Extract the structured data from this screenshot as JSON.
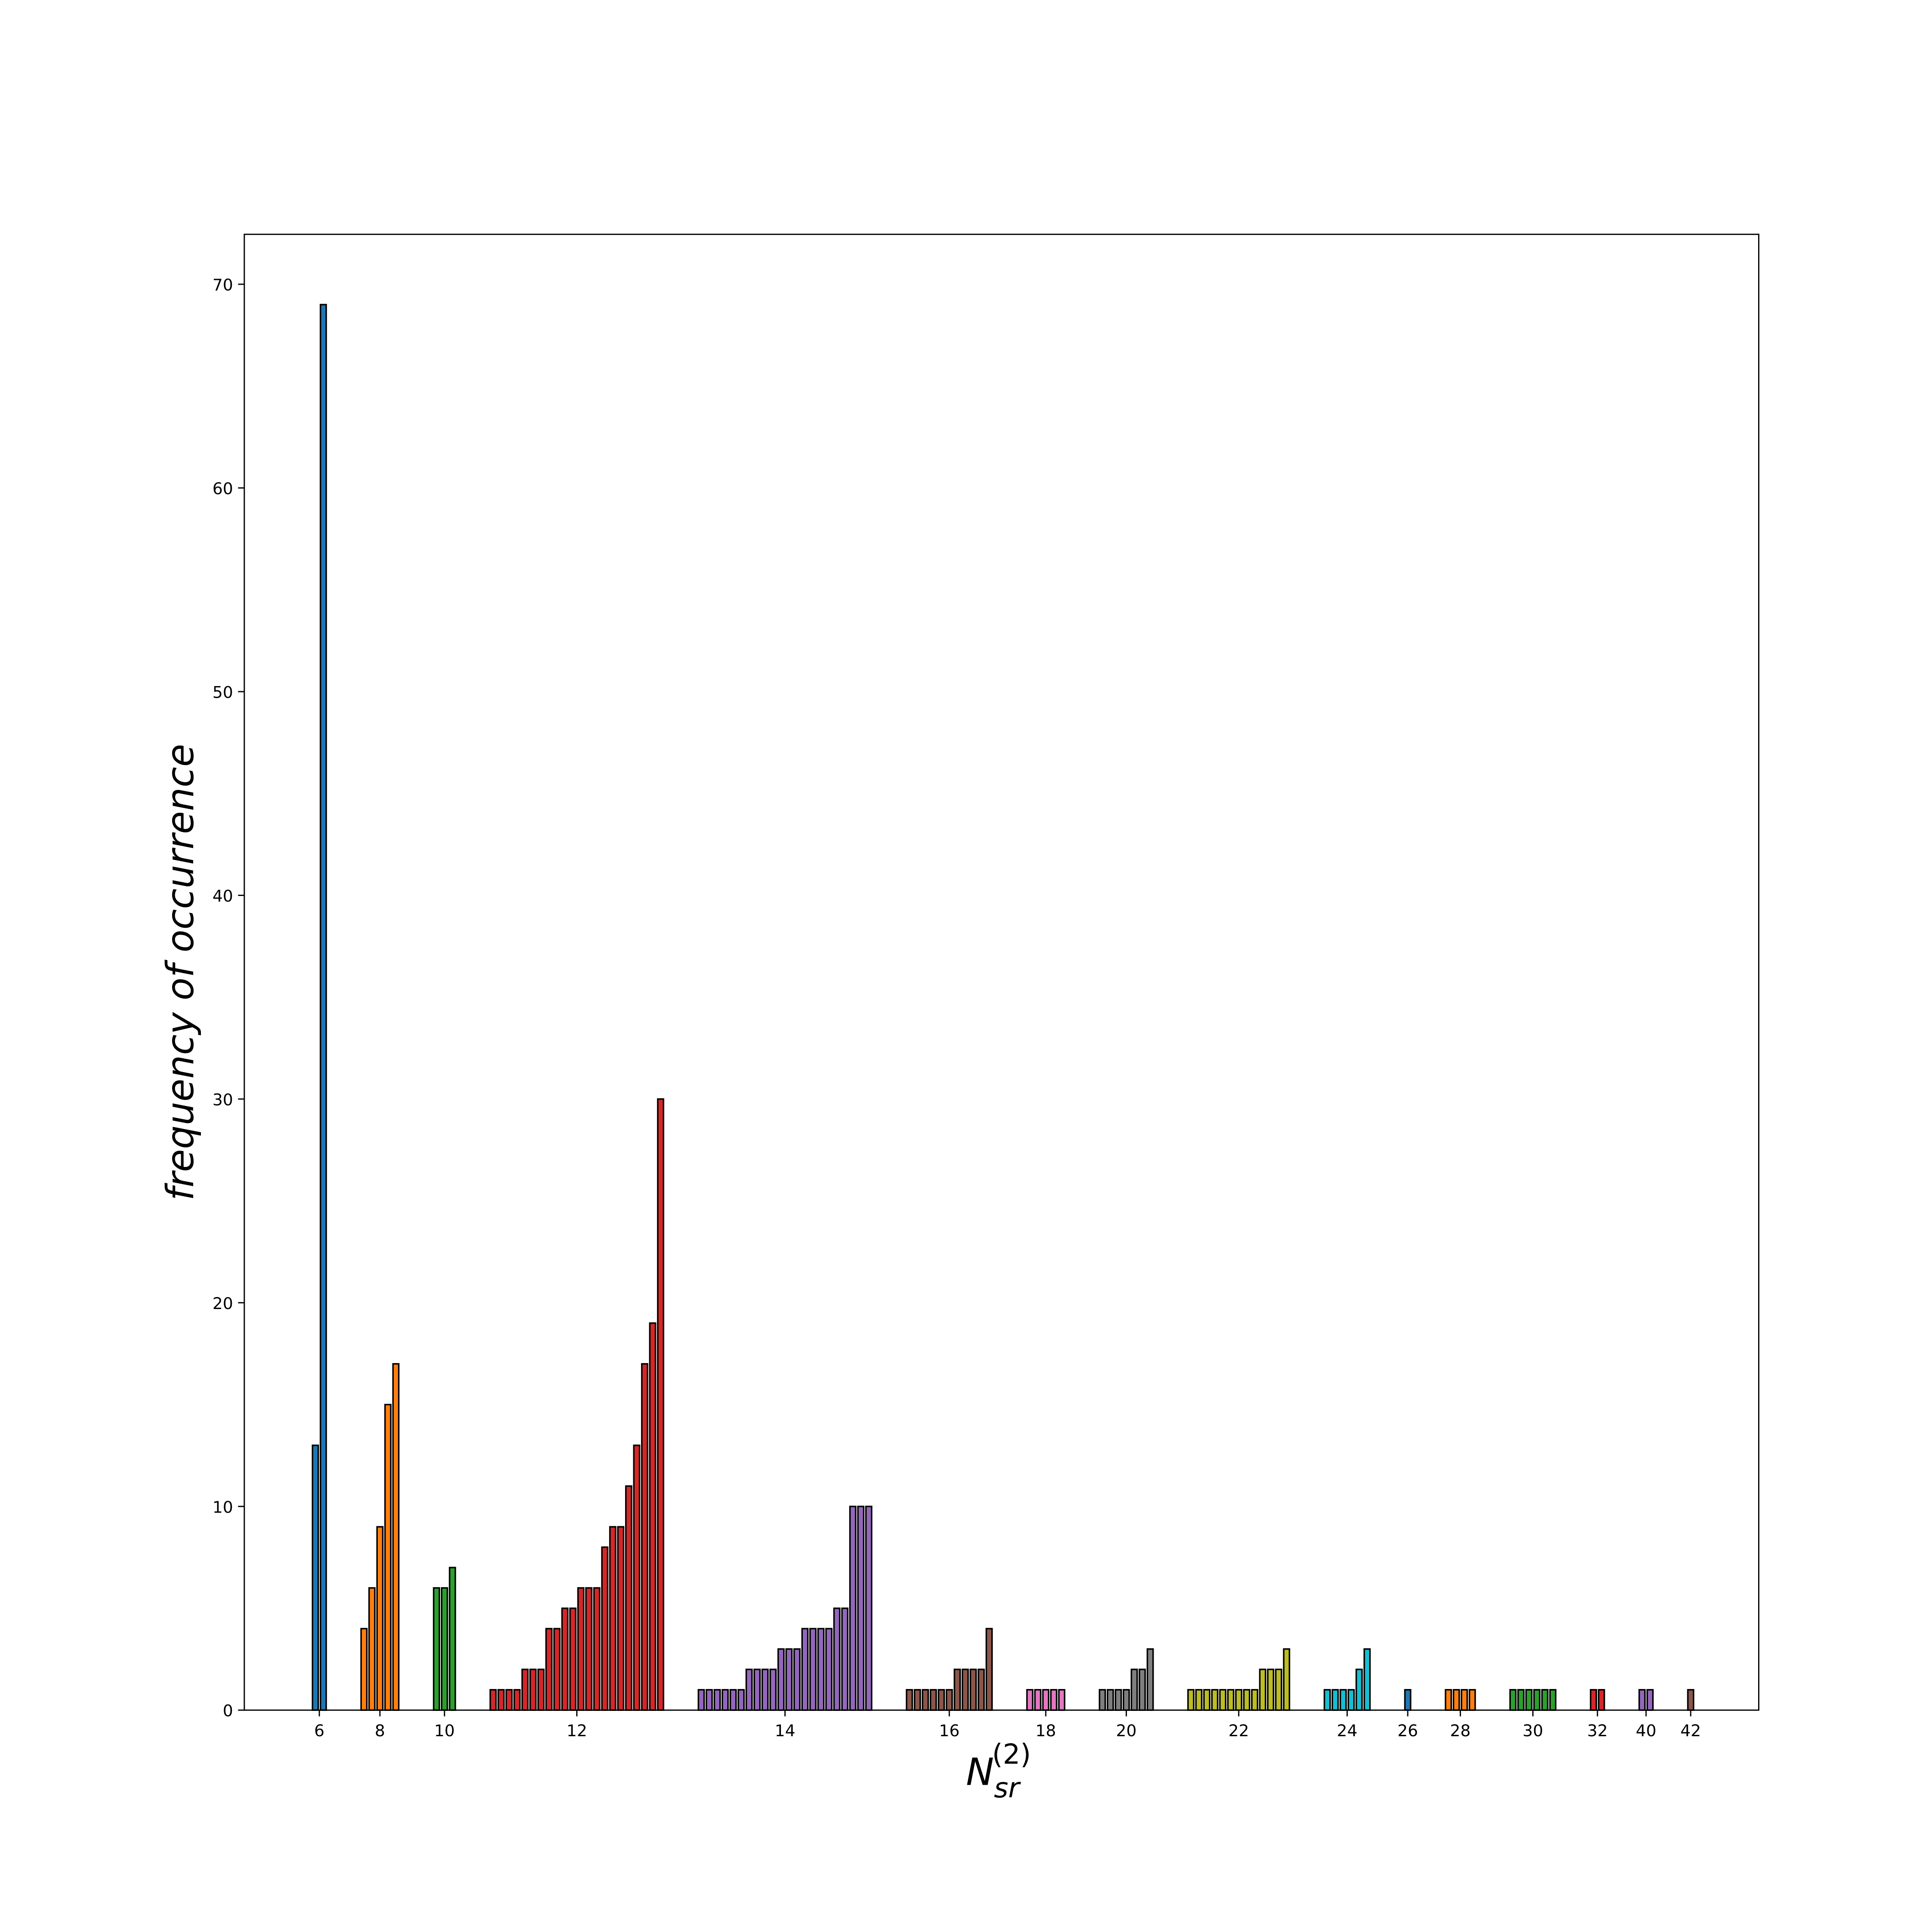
{
  "chart_data": {
    "type": "grouped-bar",
    "ylabel": "frequency of occurrence",
    "xlabel": {
      "base": "N",
      "sub": "sr",
      "sup": "(2)"
    },
    "ylim": [
      0,
      72.45
    ],
    "yticks": [
      0,
      10,
      20,
      30,
      40,
      50,
      60,
      70
    ],
    "edgecolor": "#000000",
    "groups": [
      {
        "label": "6",
        "color": "#1f77b4",
        "values": [
          13,
          69
        ]
      },
      {
        "label": "8",
        "color": "#ff7f0e",
        "values": [
          4,
          6,
          9,
          15,
          17
        ]
      },
      {
        "label": "10",
        "color": "#2ca02c",
        "values": [
          6,
          6,
          7
        ]
      },
      {
        "label": "12",
        "color": "#d62728",
        "values": [
          1,
          1,
          1,
          1,
          2,
          2,
          2,
          4,
          4,
          5,
          5,
          6,
          6,
          6,
          8,
          9,
          9,
          11,
          13,
          17,
          19,
          30
        ]
      },
      {
        "label": "14",
        "color": "#9467bd",
        "values": [
          1,
          1,
          1,
          1,
          1,
          1,
          2,
          2,
          2,
          2,
          3,
          3,
          3,
          4,
          4,
          4,
          4,
          5,
          5,
          10,
          10,
          10
        ]
      },
      {
        "label": "16",
        "color": "#8c564b",
        "values": [
          1,
          1,
          1,
          1,
          1,
          1,
          2,
          2,
          2,
          2,
          4
        ]
      },
      {
        "label": "18",
        "color": "#e377c2",
        "values": [
          1,
          1,
          1,
          1,
          1
        ]
      },
      {
        "label": "20",
        "color": "#7f7f7f",
        "values": [
          1,
          1,
          1,
          1,
          2,
          2,
          3
        ]
      },
      {
        "label": "22",
        "color": "#bcbd22",
        "values": [
          1,
          1,
          1,
          1,
          1,
          1,
          1,
          1,
          1,
          2,
          2,
          2,
          3
        ]
      },
      {
        "label": "24",
        "color": "#17becf",
        "values": [
          1,
          1,
          1,
          1,
          2,
          3
        ]
      },
      {
        "label": "26",
        "color": "#1f77b4",
        "values": [
          1
        ]
      },
      {
        "label": "28",
        "color": "#ff7f0e",
        "values": [
          1,
          1,
          1,
          1
        ]
      },
      {
        "label": "30",
        "color": "#2ca02c",
        "values": [
          1,
          1,
          1,
          1,
          1,
          1
        ]
      },
      {
        "label": "32",
        "color": "#d62728",
        "values": [
          1,
          1
        ]
      },
      {
        "label": "40",
        "color": "#9467bd",
        "values": [
          1,
          1
        ]
      },
      {
        "label": "42",
        "color": "#8c564b",
        "values": [
          1
        ]
      }
    ]
  }
}
